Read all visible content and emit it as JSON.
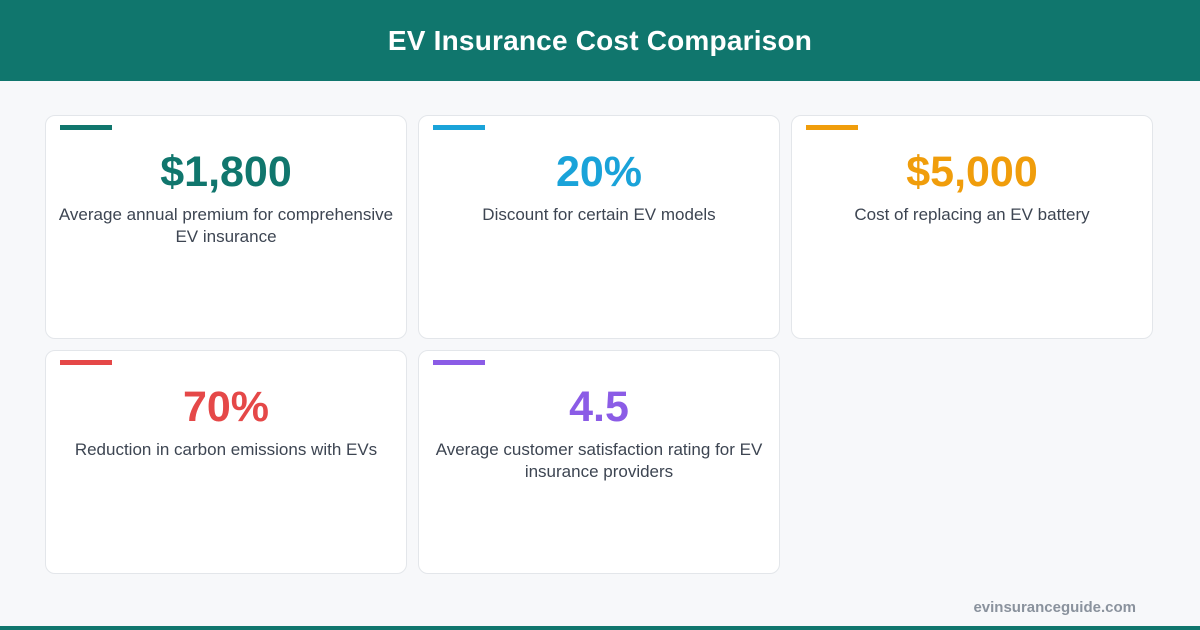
{
  "header": {
    "title": "EV Insurance Cost Comparison"
  },
  "cards": [
    {
      "value": "$1,800",
      "description": "Average annual premium for comprehensive EV insurance",
      "color": "#10766d"
    },
    {
      "value": "20%",
      "description": "Discount for certain EV models",
      "color": "#1aa3d9"
    },
    {
      "value": "$5,000",
      "description": "Cost of replacing an EV battery",
      "color": "#f09d0b"
    },
    {
      "value": "70%",
      "description": "Reduction in carbon emissions with EVs",
      "color": "#e54848"
    },
    {
      "value": "4.5",
      "description": "Average customer satisfaction rating for EV insurance providers",
      "color": "#8b5ce6"
    }
  ],
  "footer": {
    "site": "evinsuranceguide.com"
  },
  "colors": {
    "brand": "#10766d",
    "text": "#3d4552",
    "muted": "#8a929d"
  }
}
